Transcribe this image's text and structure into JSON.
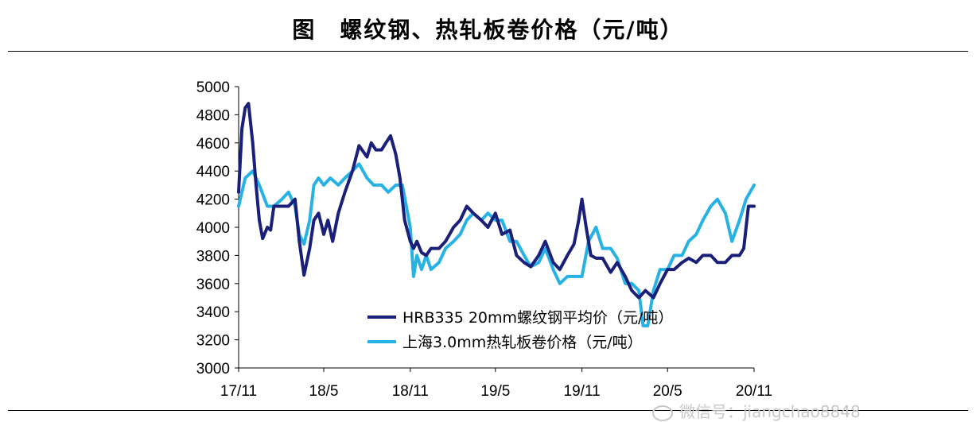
{
  "header": {
    "title": "图　螺纹钢、热轧板卷价格（元/吨）"
  },
  "watermark": {
    "text": "微信号：jiangchao8848"
  },
  "chart_data": {
    "type": "line",
    "title": "图　螺纹钢、热轧板卷价格（元/吨）",
    "xlabel": "",
    "ylabel": "",
    "ylim": [
      3000,
      5000
    ],
    "yticks": [
      3000,
      3200,
      3400,
      3600,
      3800,
      4000,
      4200,
      4400,
      4600,
      4800,
      5000
    ],
    "xlim": [
      "2017-11",
      "2020-11"
    ],
    "x_tick_labels": [
      "17/11",
      "18/5",
      "18/11",
      "19/5",
      "19/11",
      "20/5",
      "20/11"
    ],
    "x_tick_dates": [
      "2017-11",
      "2018-05",
      "2018-11",
      "2019-05",
      "2019-11",
      "2020-05",
      "2020-11"
    ],
    "grid": false,
    "legend": "bottom-center",
    "series": [
      {
        "name": "HRB335 20mm螺纹钢平均价（元/吨）",
        "color": "#1a1f7a",
        "x": [
          "2017-11-01",
          "2017-11-08",
          "2017-11-15",
          "2017-11-22",
          "2017-12-01",
          "2017-12-08",
          "2017-12-15",
          "2017-12-22",
          "2018-01-01",
          "2018-01-08",
          "2018-01-15",
          "2018-02-01",
          "2018-02-15",
          "2018-03-01",
          "2018-03-10",
          "2018-03-20",
          "2018-04-01",
          "2018-04-10",
          "2018-04-20",
          "2018-05-01",
          "2018-05-10",
          "2018-05-20",
          "2018-06-01",
          "2018-06-15",
          "2018-07-01",
          "2018-07-15",
          "2018-08-01",
          "2018-08-10",
          "2018-08-20",
          "2018-09-01",
          "2018-09-10",
          "2018-09-20",
          "2018-10-01",
          "2018-10-10",
          "2018-10-20",
          "2018-11-01",
          "2018-11-08",
          "2018-11-15",
          "2018-11-25",
          "2018-12-05",
          "2018-12-15",
          "2019-01-01",
          "2019-01-15",
          "2019-02-01",
          "2019-02-15",
          "2019-03-01",
          "2019-03-15",
          "2019-04-01",
          "2019-04-15",
          "2019-05-01",
          "2019-05-15",
          "2019-06-01",
          "2019-06-15",
          "2019-07-01",
          "2019-07-15",
          "2019-08-01",
          "2019-08-15",
          "2019-09-01",
          "2019-09-15",
          "2019-10-01",
          "2019-10-15",
          "2019-10-25",
          "2019-11-01",
          "2019-11-10",
          "2019-11-20",
          "2019-12-01",
          "2019-12-15",
          "2020-01-01",
          "2020-01-15",
          "2020-02-01",
          "2020-02-15",
          "2020-03-01",
          "2020-03-15",
          "2020-04-01",
          "2020-04-15",
          "2020-05-01",
          "2020-05-15",
          "2020-06-01",
          "2020-06-15",
          "2020-07-01",
          "2020-07-15",
          "2020-08-01",
          "2020-08-15",
          "2020-09-01",
          "2020-09-15",
          "2020-10-01",
          "2020-10-10",
          "2020-10-20",
          "2020-11-01"
        ],
        "y": [
          4250,
          4700,
          4850,
          4880,
          4600,
          4300,
          4050,
          3920,
          4000,
          3980,
          4150,
          4150,
          4150,
          4200,
          3900,
          3660,
          3850,
          4050,
          4100,
          3950,
          4050,
          3900,
          4100,
          4250,
          4400,
          4580,
          4500,
          4600,
          4550,
          4550,
          4600,
          4650,
          4520,
          4350,
          4050,
          3900,
          3850,
          3900,
          3820,
          3800,
          3850,
          3850,
          3900,
          4000,
          4050,
          4150,
          4100,
          4050,
          4000,
          4100,
          3950,
          3980,
          3800,
          3750,
          3720,
          3800,
          3900,
          3750,
          3700,
          3800,
          3880,
          4050,
          4200,
          4000,
          3800,
          3780,
          3780,
          3680,
          3750,
          3650,
          3550,
          3500,
          3550,
          3500,
          3600,
          3700,
          3700,
          3750,
          3780,
          3750,
          3800,
          3800,
          3750,
          3750,
          3800,
          3800,
          3850,
          4150,
          4150
        ]
      },
      {
        "name": "上海3.0mm热轧板卷价格（元/吨）",
        "color": "#27b2e6",
        "x": [
          "2017-11-01",
          "2017-11-15",
          "2017-12-01",
          "2017-12-15",
          "2018-01-01",
          "2018-01-15",
          "2018-02-01",
          "2018-02-15",
          "2018-03-01",
          "2018-03-10",
          "2018-03-20",
          "2018-04-01",
          "2018-04-10",
          "2018-04-20",
          "2018-05-01",
          "2018-05-15",
          "2018-06-01",
          "2018-06-15",
          "2018-07-01",
          "2018-07-15",
          "2018-08-01",
          "2018-08-15",
          "2018-09-01",
          "2018-09-15",
          "2018-10-01",
          "2018-10-15",
          "2018-11-01",
          "2018-11-08",
          "2018-11-15",
          "2018-11-25",
          "2018-12-05",
          "2018-12-15",
          "2019-01-01",
          "2019-01-15",
          "2019-02-01",
          "2019-02-15",
          "2019-03-01",
          "2019-03-15",
          "2019-04-01",
          "2019-04-15",
          "2019-05-01",
          "2019-05-15",
          "2019-06-01",
          "2019-06-15",
          "2019-07-01",
          "2019-07-15",
          "2019-08-01",
          "2019-08-15",
          "2019-09-01",
          "2019-09-15",
          "2019-10-01",
          "2019-10-15",
          "2019-11-01",
          "2019-11-15",
          "2019-12-01",
          "2019-12-15",
          "2020-01-01",
          "2020-01-15",
          "2020-02-01",
          "2020-02-15",
          "2020-03-01",
          "2020-03-10",
          "2020-03-20",
          "2020-04-01",
          "2020-04-15",
          "2020-05-01",
          "2020-05-15",
          "2020-06-01",
          "2020-06-15",
          "2020-07-01",
          "2020-07-15",
          "2020-08-01",
          "2020-08-15",
          "2020-09-01",
          "2020-09-15",
          "2020-10-01",
          "2020-10-15",
          "2020-11-01"
        ],
        "y": [
          4150,
          4350,
          4400,
          4300,
          4150,
          4150,
          4200,
          4250,
          4150,
          3950,
          3880,
          4050,
          4300,
          4350,
          4300,
          4350,
          4300,
          4350,
          4400,
          4450,
          4350,
          4300,
          4300,
          4250,
          4300,
          4300,
          4000,
          3650,
          3800,
          3700,
          3800,
          3700,
          3750,
          3850,
          3900,
          3950,
          4050,
          4100,
          4050,
          4100,
          4050,
          4050,
          3900,
          3900,
          3800,
          3720,
          3750,
          3850,
          3700,
          3600,
          3650,
          3650,
          3650,
          3900,
          4000,
          3850,
          3850,
          3780,
          3600,
          3600,
          3550,
          3300,
          3300,
          3550,
          3700,
          3700,
          3800,
          3800,
          3900,
          3950,
          4050,
          4150,
          4200,
          4100,
          3900,
          4050,
          4200,
          4300
        ]
      }
    ]
  }
}
